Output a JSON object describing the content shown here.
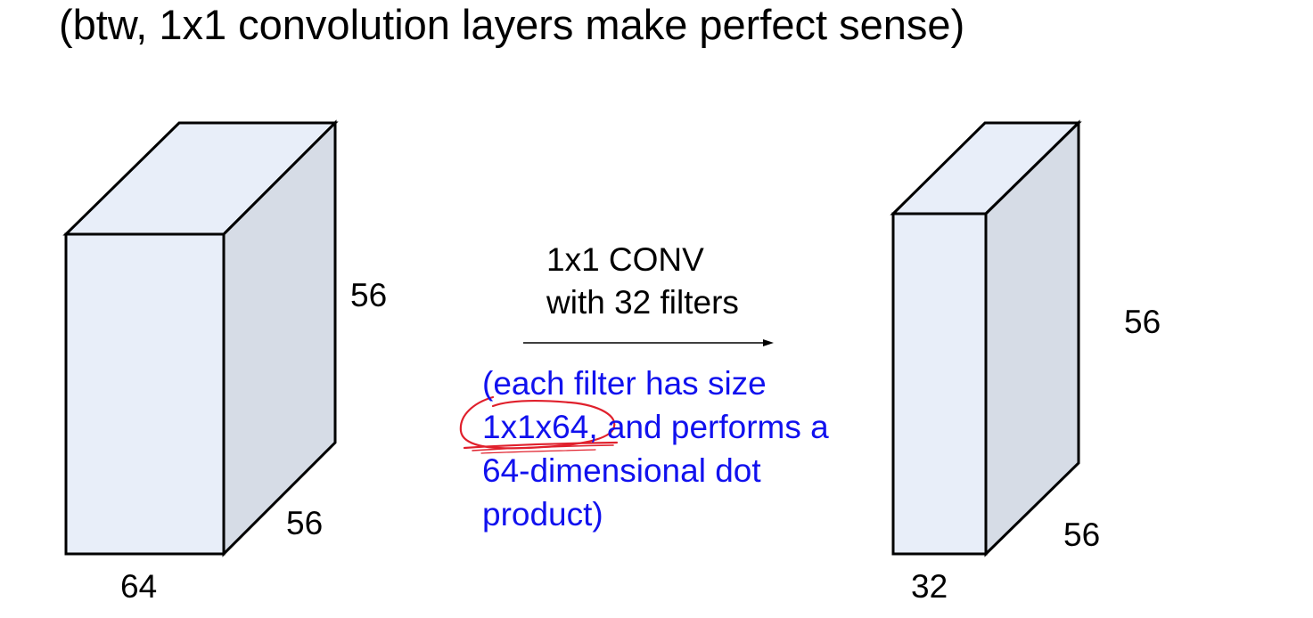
{
  "slide": {
    "title": "(btw, 1x1 convolution layers make perfect sense)"
  },
  "input_volume": {
    "height_label": "56",
    "width_label": "56",
    "depth_label": "64"
  },
  "operation": {
    "title": "1x1 CONV",
    "subtitle": "with 32 filters"
  },
  "note": {
    "line1": "(each filter has size",
    "line2_highlight": "1x1x64",
    "line2_rest": ", and performs a",
    "line3": "64-dimensional dot",
    "line4": "product)"
  },
  "output_volume": {
    "height_label": "56",
    "width_label": "56",
    "depth_label": "32"
  },
  "colors": {
    "face_front": "#e8eef9",
    "face_side": "#d6dce6",
    "face_top": "#e8eef9",
    "outline": "#000000",
    "note_text": "#1111ee",
    "annotation": "#e0202c"
  }
}
